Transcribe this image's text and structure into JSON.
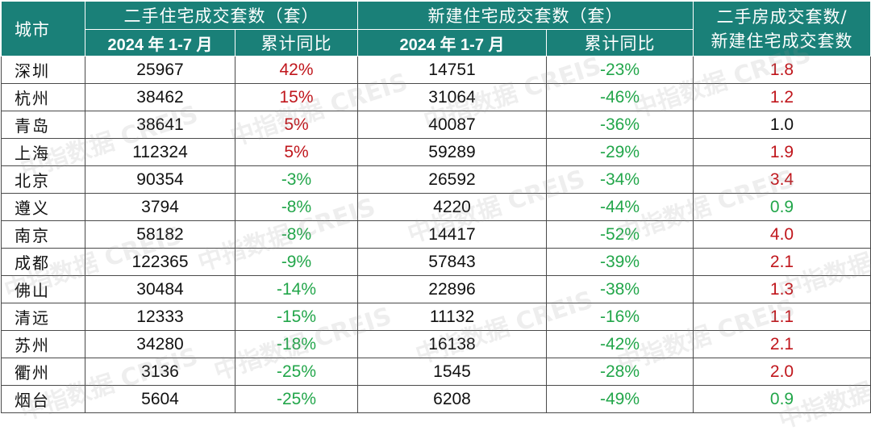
{
  "headers": {
    "city": "城市",
    "second_hand_group": "二手住宅成交套数（套）",
    "new_home_group": "新建住宅成交套数（套）",
    "ratio_line1": "二手房成交套数/",
    "ratio_line2": "新建住宅成交套数",
    "period": "2024 年 1-7 月",
    "yoy": "累计同比"
  },
  "watermark": "中指数据 CREIS",
  "colors": {
    "header_bg": "#1a8078",
    "up": "#c0161c",
    "down": "#22a64a"
  },
  "rows": [
    {
      "city": "深圳",
      "sh": "25967",
      "sh_yoy": "42%",
      "nh": "14751",
      "nh_yoy": "-23%",
      "ratio": "1.8"
    },
    {
      "city": "杭州",
      "sh": "38462",
      "sh_yoy": "15%",
      "nh": "31064",
      "nh_yoy": "-46%",
      "ratio": "1.2"
    },
    {
      "city": "青岛",
      "sh": "38641",
      "sh_yoy": "5%",
      "nh": "40087",
      "nh_yoy": "-36%",
      "ratio": "1.0"
    },
    {
      "city": "上海",
      "sh": "112324",
      "sh_yoy": "5%",
      "nh": "59289",
      "nh_yoy": "-29%",
      "ratio": "1.9"
    },
    {
      "city": "北京",
      "sh": "90354",
      "sh_yoy": "-3%",
      "nh": "26592",
      "nh_yoy": "-34%",
      "ratio": "3.4"
    },
    {
      "city": "遵义",
      "sh": "3794",
      "sh_yoy": "-8%",
      "nh": "4220",
      "nh_yoy": "-44%",
      "ratio": "0.9"
    },
    {
      "city": "南京",
      "sh": "58182",
      "sh_yoy": "-8%",
      "nh": "14417",
      "nh_yoy": "-52%",
      "ratio": "4.0"
    },
    {
      "city": "成都",
      "sh": "122365",
      "sh_yoy": "-9%",
      "nh": "57843",
      "nh_yoy": "-39%",
      "ratio": "2.1"
    },
    {
      "city": "佛山",
      "sh": "30484",
      "sh_yoy": "-14%",
      "nh": "22896",
      "nh_yoy": "-38%",
      "ratio": "1.3"
    },
    {
      "city": "清远",
      "sh": "12333",
      "sh_yoy": "-15%",
      "nh": "11132",
      "nh_yoy": "-16%",
      "ratio": "1.1"
    },
    {
      "city": "苏州",
      "sh": "34280",
      "sh_yoy": "-18%",
      "nh": "16138",
      "nh_yoy": "-42%",
      "ratio": "2.1"
    },
    {
      "city": "衢州",
      "sh": "3136",
      "sh_yoy": "-25%",
      "nh": "1545",
      "nh_yoy": "-28%",
      "ratio": "2.0"
    },
    {
      "city": "烟台",
      "sh": "5604",
      "sh_yoy": "-25%",
      "nh": "6208",
      "nh_yoy": "-49%",
      "ratio": "0.9"
    }
  ]
}
